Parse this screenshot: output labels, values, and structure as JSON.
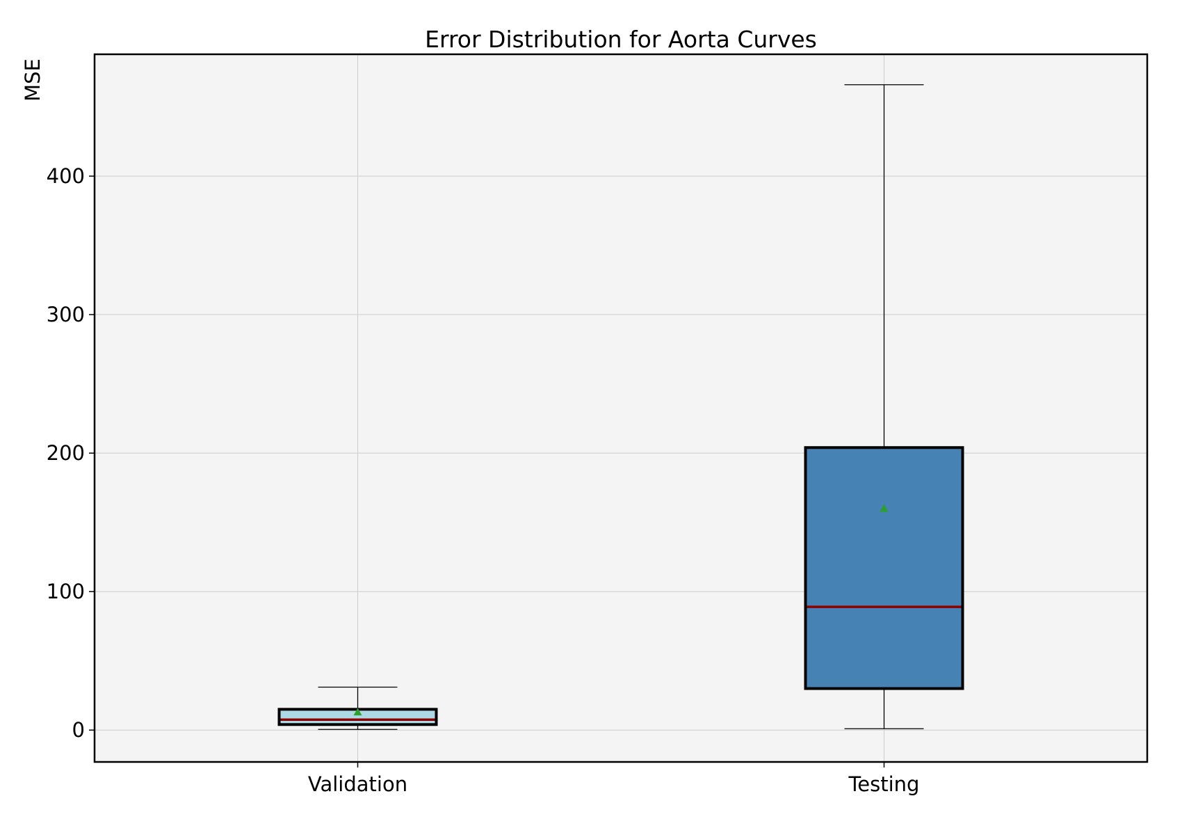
{
  "chart_data": {
    "type": "box",
    "title": "Error Distribution for Aorta Curves",
    "xlabel": "",
    "ylabel": "MSE",
    "ylim": [
      -23,
      488
    ],
    "yticks": [
      0,
      100,
      200,
      300,
      400
    ],
    "grid": true,
    "categories": [
      "Validation",
      "Testing"
    ],
    "boxes": [
      {
        "category": "Validation",
        "whisker_low": 0.5,
        "q1": 4,
        "median": 7.5,
        "q3": 15,
        "whisker_high": 31,
        "mean": 13,
        "fill": "#add8e6"
      },
      {
        "category": "Testing",
        "whisker_low": 1,
        "q1": 30,
        "median": 89,
        "q3": 204,
        "whisker_high": 466,
        "mean": 160,
        "fill": "#4682b4"
      }
    ],
    "colors": {
      "median": "#8b0000",
      "mean": "#2ca02c",
      "background": "#f4f4f4",
      "edge": "#000000",
      "grid": "#cccccc"
    }
  }
}
